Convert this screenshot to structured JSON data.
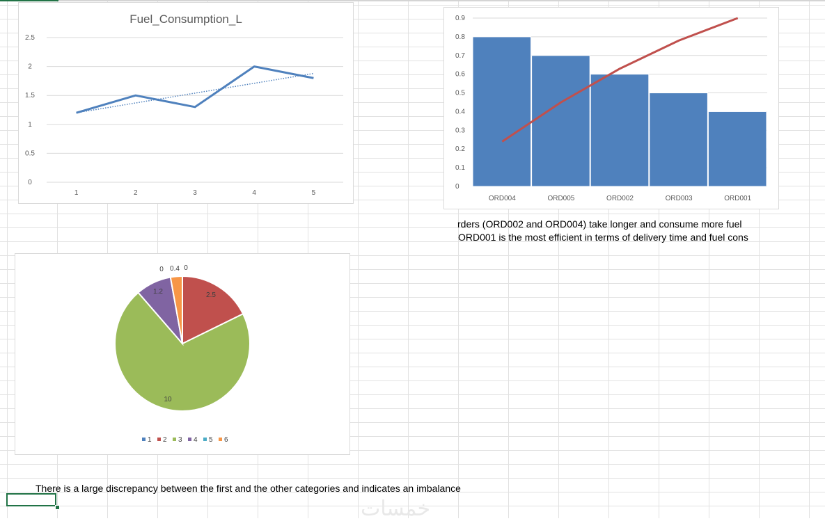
{
  "sheet": {
    "notes": {
      "pareto_note_line1": "rders (ORD002 and ORD004) take longer and consume more fuel",
      "pareto_note_line2": "ORD001 is the most efficient in terms of delivery time and fuel cons",
      "pie_note": "There is a large discrepancy between the first and the other categories and indicates an imbalance"
    },
    "colors": {
      "grid": "#e1e1e1",
      "selection": "#217346",
      "line_blue": "#4f81bd",
      "pareto_line": "#c0504d"
    }
  },
  "chart_data": [
    {
      "type": "line",
      "title": "Fuel_Consumption_L",
      "x": [
        "1",
        "2",
        "3",
        "4",
        "5"
      ],
      "series": [
        {
          "values": [
            1.2,
            1.5,
            1.3,
            2.0,
            1.8
          ],
          "color": "#4f81bd"
        }
      ],
      "trendline": {
        "style": "dotted",
        "from": 1.2,
        "to": 1.88
      },
      "ylim": [
        0,
        2.5
      ],
      "yticks": [
        "0",
        "0.5",
        "1",
        "1.5",
        "2",
        "2.5"
      ],
      "grid": true
    },
    {
      "type": "bar",
      "categories": [
        "ORD004",
        "ORD005",
        "ORD002",
        "ORD003",
        "ORD001"
      ],
      "series": [
        {
          "values": [
            0.8,
            0.7,
            0.6,
            0.5,
            0.4
          ],
          "color": "#4f81bd"
        }
      ],
      "line_series": {
        "values": [
          0.24,
          0.45,
          0.63,
          0.78,
          0.9
        ],
        "color": "#c0504d"
      },
      "ylim": [
        0,
        0.9
      ],
      "yticks": [
        "0",
        "0.1",
        "0.2",
        "0.3",
        "0.4",
        "0.5",
        "0.6",
        "0.7",
        "0.8",
        "0.9"
      ],
      "grid": true
    },
    {
      "type": "pie",
      "categories": [
        "1",
        "2",
        "3",
        "4",
        "5",
        "6"
      ],
      "values": [
        0,
        2.5,
        10,
        1.2,
        0,
        0.4
      ],
      "labels": [
        "0",
        "2.5",
        "10",
        "1.2",
        "0",
        "0.4"
      ],
      "colors": [
        "#4f81bd",
        "#c0504d",
        "#9bbb59",
        "#8064a2",
        "#4bacc6",
        "#f79646"
      ],
      "legend": "bottom"
    }
  ]
}
